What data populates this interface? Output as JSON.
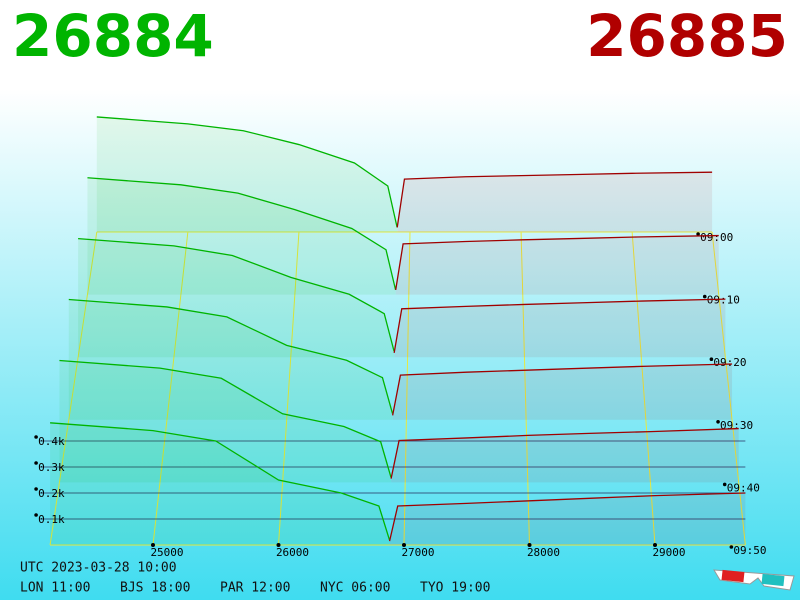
{
  "header": {
    "bid_price": 26884,
    "ask_price": 26885
  },
  "chart_data": {
    "type": "depth3d",
    "bid_color": "#00b400",
    "ask_color": "#a00000",
    "times": [
      "09:00",
      "09:10",
      "09:20",
      "09:30",
      "09:40",
      "09:50"
    ],
    "bid_prices": [
      24180,
      25000,
      25500,
      26000,
      26500,
      26800,
      26884
    ],
    "ask_prices": [
      26885,
      26950,
      27500,
      28000,
      28500,
      29000,
      29720
    ],
    "bid_depth": [
      [
        500,
        470,
        440,
        380,
        300,
        200,
        20
      ],
      [
        495,
        465,
        430,
        360,
        280,
        190,
        20
      ],
      [
        490,
        460,
        420,
        330,
        260,
        180,
        25
      ],
      [
        485,
        455,
        415,
        300,
        240,
        170,
        25
      ],
      [
        480,
        450,
        410,
        270,
        220,
        160,
        20
      ],
      [
        470,
        440,
        400,
        250,
        200,
        150,
        20
      ]
    ],
    "ask_depth": [
      [
        20,
        230,
        240,
        245,
        250,
        255,
        260
      ],
      [
        20,
        215,
        225,
        232,
        238,
        244,
        250
      ],
      [
        18,
        200,
        210,
        218,
        225,
        232,
        240
      ],
      [
        18,
        180,
        192,
        200,
        208,
        216,
        225
      ],
      [
        15,
        165,
        175,
        185,
        193,
        200,
        212
      ],
      [
        15,
        150,
        160,
        170,
        180,
        190,
        200
      ]
    ],
    "xlim": [
      24180,
      29720
    ],
    "xticks": [
      25000,
      26000,
      27000,
      28000,
      29000
    ],
    "zlim": [
      0,
      500
    ],
    "zticks": [
      {
        "value": 100,
        "label": "0.1k"
      },
      {
        "value": 200,
        "label": "0.2k"
      },
      {
        "value": 300,
        "label": "0.3k"
      },
      {
        "value": 400,
        "label": "0.4k"
      }
    ]
  },
  "footer": {
    "utc": "UTC 2023-03-28 10:00",
    "cities": [
      "LON 11:00",
      "BJS 18:00",
      "PAR 12:00",
      "NYC 06:00",
      "TYO 19:00"
    ]
  }
}
